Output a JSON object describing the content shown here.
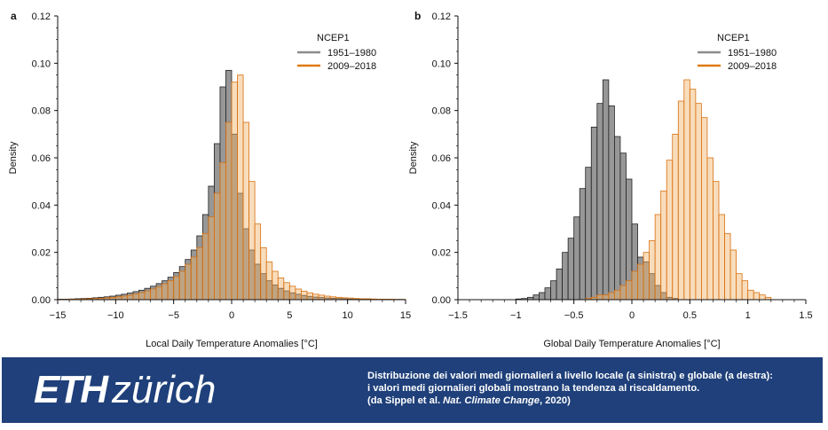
{
  "chart_data": [
    {
      "type": "histogram",
      "panel_label": "a",
      "xlabel": "Local Daily Temperature Anomalies [°C]",
      "ylabel": "Density",
      "xlim": [
        -15,
        15
      ],
      "ylim": [
        0,
        0.12
      ],
      "xticks": [
        -15,
        -10,
        -5,
        0,
        5,
        10,
        15
      ],
      "yticks": [
        0.0,
        0.02,
        0.04,
        0.06,
        0.08,
        0.1,
        0.12
      ],
      "ytick_labels": [
        "0.00",
        "0.02",
        "0.04",
        "0.06",
        "0.08",
        "0.10",
        "0.12"
      ],
      "xtick_labels": [
        "−15",
        "−10",
        "−5",
        "0",
        "5",
        "10",
        "15"
      ],
      "legend": {
        "title": "NCEP1",
        "position": "top-right"
      },
      "bin_width": 0.5,
      "series": [
        {
          "name": "1951–1980",
          "color": "#8c8c8c",
          "edge": "#222222",
          "x": [
            -15,
            -14.5,
            -14,
            -13.5,
            -13,
            -12.5,
            -12,
            -11.5,
            -11,
            -10.5,
            -10,
            -9.5,
            -9,
            -8.5,
            -8,
            -7.5,
            -7,
            -6.5,
            -6,
            -5.5,
            -5,
            -4.5,
            -4,
            -3.5,
            -3,
            -2.5,
            -2,
            -1.5,
            -1,
            -0.5,
            0,
            0.5,
            1,
            1.5,
            2,
            2.5,
            3,
            3.5,
            4,
            4.5,
            5,
            5.5,
            6,
            6.5,
            7,
            7.5,
            8,
            8.5,
            9,
            9.5,
            10,
            10.5,
            11,
            11.5,
            12,
            12.5,
            13,
            13.5,
            14,
            14.5
          ],
          "y": [
            0.0002,
            0.0002,
            0.0003,
            0.0004,
            0.0005,
            0.0006,
            0.0008,
            0.001,
            0.0012,
            0.0015,
            0.0019,
            0.0023,
            0.0028,
            0.0034,
            0.004,
            0.0048,
            0.0057,
            0.0068,
            0.008,
            0.0095,
            0.0115,
            0.014,
            0.017,
            0.021,
            0.027,
            0.036,
            0.048,
            0.066,
            0.09,
            0.097,
            0.07,
            0.045,
            0.03,
            0.021,
            0.015,
            0.011,
            0.008,
            0.0062,
            0.0048,
            0.0037,
            0.0029,
            0.0023,
            0.0018,
            0.0014,
            0.0011,
            0.0009,
            0.0007,
            0.0006,
            0.0005,
            0.0004,
            0.0003,
            0.0003,
            0.0002,
            0.0002,
            0.0002,
            0.0001,
            0.0001,
            0.0001,
            0.0001,
            0.0001
          ]
        },
        {
          "name": "2009–2018",
          "color": "#f0b36b",
          "edge": "#d9700f",
          "x": [
            -15,
            -14.5,
            -14,
            -13.5,
            -13,
            -12.5,
            -12,
            -11.5,
            -11,
            -10.5,
            -10,
            -9.5,
            -9,
            -8.5,
            -8,
            -7.5,
            -7,
            -6.5,
            -6,
            -5.5,
            -5,
            -4.5,
            -4,
            -3.5,
            -3,
            -2.5,
            -2,
            -1.5,
            -1,
            -0.5,
            0,
            0.5,
            1,
            1.5,
            2,
            2.5,
            3,
            3.5,
            4,
            4.5,
            5,
            5.5,
            6,
            6.5,
            7,
            7.5,
            8,
            8.5,
            9,
            9.5,
            10,
            10.5,
            11,
            11.5,
            12,
            12.5,
            13,
            13.5,
            14,
            14.5
          ],
          "y": [
            0.0001,
            0.0001,
            0.0002,
            0.0002,
            0.0003,
            0.0004,
            0.0005,
            0.0006,
            0.0008,
            0.001,
            0.0012,
            0.0015,
            0.0019,
            0.0024,
            0.003,
            0.0037,
            0.0045,
            0.0055,
            0.0067,
            0.0081,
            0.0098,
            0.012,
            0.015,
            0.018,
            0.022,
            0.028,
            0.035,
            0.045,
            0.058,
            0.075,
            0.092,
            0.095,
            0.075,
            0.05,
            0.032,
            0.022,
            0.016,
            0.012,
            0.0092,
            0.0072,
            0.0057,
            0.0045,
            0.0036,
            0.0029,
            0.0023,
            0.0019,
            0.0015,
            0.0012,
            0.001,
            0.0008,
            0.0007,
            0.0005,
            0.0004,
            0.0004,
            0.0003,
            0.0002,
            0.0002,
            0.0002,
            0.0001,
            0.0001
          ]
        }
      ]
    },
    {
      "type": "histogram",
      "panel_label": "b",
      "xlabel": "Global Daily Temperature Anomalies [°C]",
      "ylabel": "Density",
      "xlim": [
        -1.5,
        1.5
      ],
      "ylim": [
        0,
        0.12
      ],
      "xticks": [
        -1.5,
        -1,
        -0.5,
        0,
        0.5,
        1,
        1.5
      ],
      "yticks": [
        0.0,
        0.02,
        0.04,
        0.06,
        0.08,
        0.1,
        0.12
      ],
      "ytick_labels": [
        "0.00",
        "0.02",
        "0.04",
        "0.06",
        "0.08",
        "0.10",
        "0.12"
      ],
      "xtick_labels": [
        "−1.5",
        "−1",
        "−0.5",
        "0",
        "0.5",
        "1",
        "1.5"
      ],
      "legend": {
        "title": "NCEP1",
        "position": "top-right"
      },
      "bin_width": 0.05,
      "series": [
        {
          "name": "1951–1980",
          "color": "#8c8c8c",
          "edge": "#222222",
          "x": [
            -1.0,
            -0.95,
            -0.9,
            -0.85,
            -0.8,
            -0.75,
            -0.7,
            -0.65,
            -0.6,
            -0.55,
            -0.5,
            -0.45,
            -0.4,
            -0.35,
            -0.3,
            -0.25,
            -0.2,
            -0.15,
            -0.1,
            -0.05,
            0.0,
            0.05,
            0.1,
            0.15,
            0.2,
            0.25,
            0.3,
            0.35
          ],
          "y": [
            0.0003,
            0.0005,
            0.001,
            0.002,
            0.003,
            0.005,
            0.008,
            0.013,
            0.02,
            0.026,
            0.035,
            0.047,
            0.056,
            0.073,
            0.083,
            0.093,
            0.082,
            0.069,
            0.062,
            0.051,
            0.032,
            0.018,
            0.016,
            0.011,
            0.006,
            0.003,
            0.001,
            0.0005
          ]
        },
        {
          "name": "2009–2018",
          "color": "#f0b36b",
          "edge": "#d9700f",
          "x": [
            -0.4,
            -0.35,
            -0.3,
            -0.25,
            -0.2,
            -0.15,
            -0.1,
            -0.05,
            0.0,
            0.05,
            0.1,
            0.15,
            0.2,
            0.25,
            0.3,
            0.35,
            0.4,
            0.45,
            0.5,
            0.55,
            0.6,
            0.65,
            0.7,
            0.75,
            0.8,
            0.85,
            0.9,
            0.95,
            1.0,
            1.05,
            1.1,
            1.15
          ],
          "y": [
            0.0005,
            0.001,
            0.002,
            0.002,
            0.003,
            0.004,
            0.006,
            0.008,
            0.012,
            0.015,
            0.02,
            0.025,
            0.036,
            0.046,
            0.059,
            0.07,
            0.084,
            0.093,
            0.089,
            0.083,
            0.077,
            0.06,
            0.05,
            0.036,
            0.028,
            0.021,
            0.011,
            0.008,
            0.004,
            0.003,
            0.002,
            0.001
          ]
        }
      ]
    }
  ],
  "banner": {
    "logo_bold": "ETH",
    "logo_light": "zürich",
    "caption_line1": "Distribuzione dei valori medi giornalieri a livello locale (a sinistra) e globale (a destra):",
    "caption_line2": "i valori medi giornalieri globali mostrano la tendenza al riscaldamento.",
    "caption_line3_prefix": "(da Sippel et al. ",
    "caption_line3_journal": "Nat. Climate Change",
    "caption_line3_suffix": ", 2020)",
    "background": "#1f407a"
  }
}
